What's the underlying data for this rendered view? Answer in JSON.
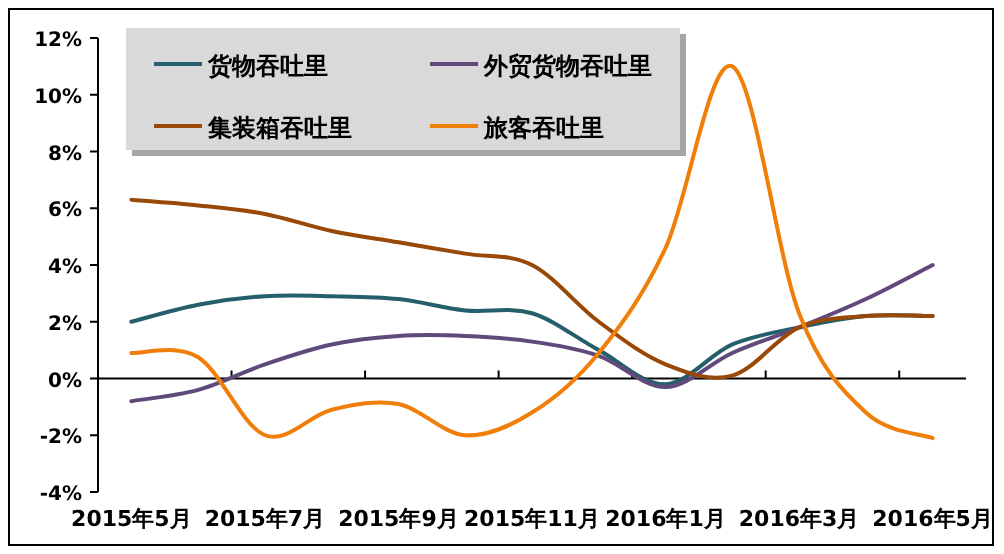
{
  "chart_data": {
    "type": "line",
    "categories": [
      "2015年5月",
      null,
      "2015年7月",
      null,
      "2015年9月",
      null,
      "2015年11月",
      null,
      "2016年1月",
      null,
      "2016年3月",
      null,
      "2016年5月"
    ],
    "series": [
      {
        "name": "货物吞吐里",
        "color": "#245f6b",
        "values": [
          2.0,
          2.6,
          2.9,
          2.9,
          2.8,
          2.4,
          2.3,
          1.0,
          -0.2,
          1.2,
          1.8,
          2.2,
          2.2
        ]
      },
      {
        "name": "外贸货物吞吐里",
        "color": "#604a7b",
        "values": [
          -0.8,
          -0.4,
          0.5,
          1.2,
          1.5,
          1.5,
          1.3,
          0.8,
          -0.3,
          0.9,
          1.8,
          2.8,
          4.0
        ]
      },
      {
        "name": "集装箱吞吐里",
        "color": "#984807",
        "values": [
          6.3,
          6.1,
          5.8,
          5.2,
          4.8,
          4.4,
          4.0,
          2.0,
          0.5,
          0.1,
          1.8,
          2.2,
          2.2
        ]
      },
      {
        "name": "旅客吞吐里",
        "color": "#f07f09",
        "values": [
          0.9,
          0.75,
          -2.0,
          -1.1,
          -0.9,
          -2.0,
          -1.2,
          0.9,
          4.6,
          11.0,
          2.3,
          -1.2,
          -2.1
        ]
      }
    ],
    "ylim": [
      -4,
      12
    ],
    "yticks": [
      {
        "value": -4,
        "label": "-4%"
      },
      {
        "value": -2,
        "label": "-2%"
      },
      {
        "value": 0,
        "label": "0%"
      },
      {
        "value": 2,
        "label": "2%"
      },
      {
        "value": 4,
        "label": "4%"
      },
      {
        "value": 6,
        "label": "6%"
      },
      {
        "value": 8,
        "label": "8%"
      },
      {
        "value": 10,
        "label": "10%"
      },
      {
        "value": 12,
        "label": "12%"
      }
    ],
    "legend": "top",
    "marker": "none",
    "line_style": "solid"
  }
}
